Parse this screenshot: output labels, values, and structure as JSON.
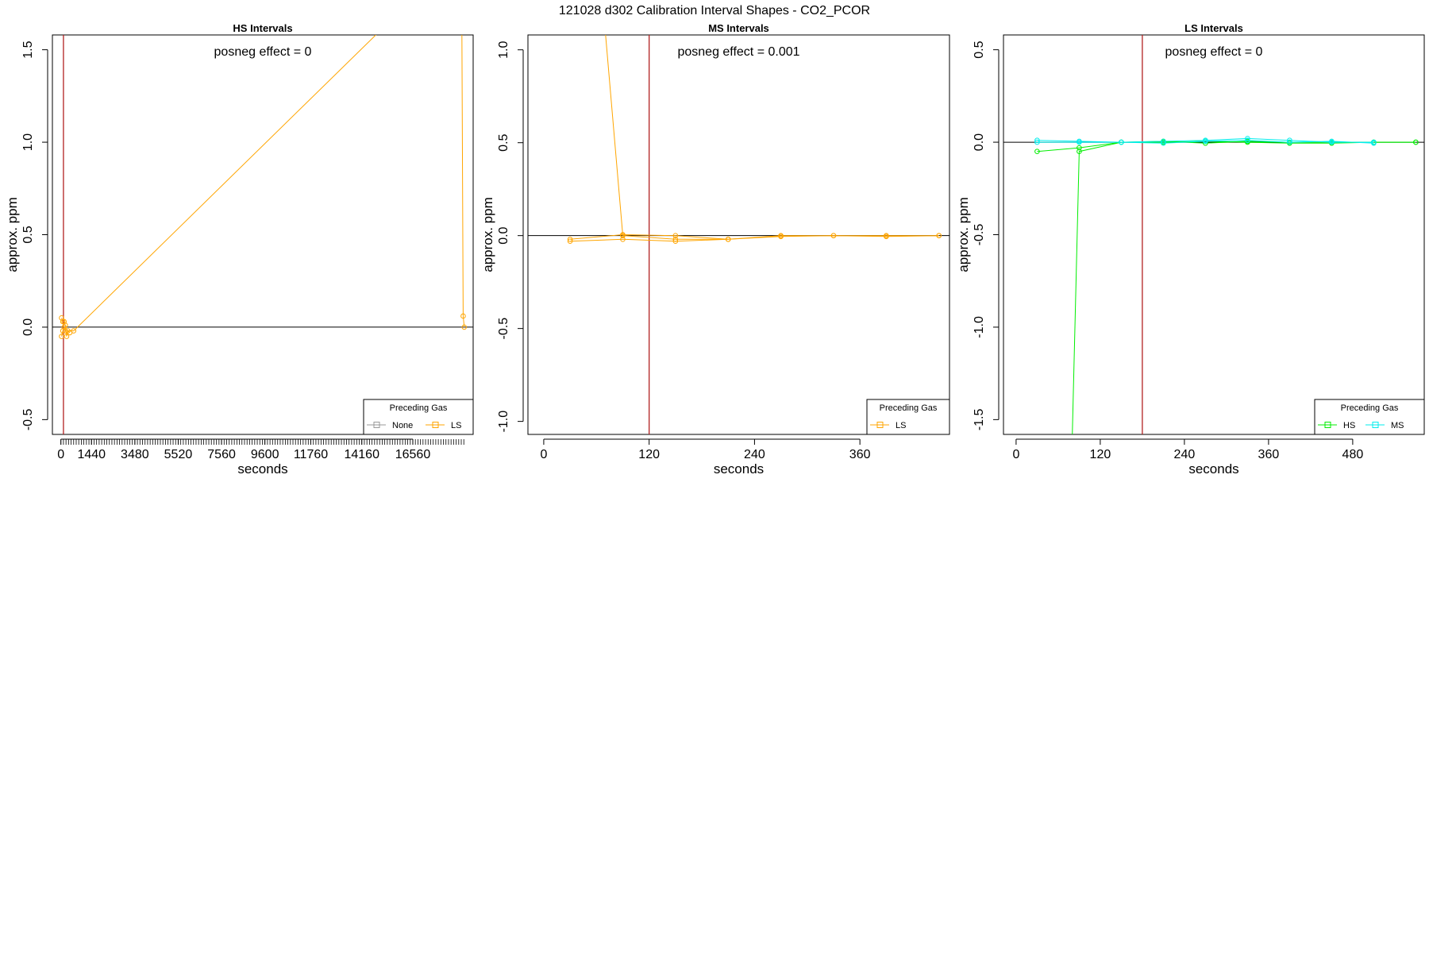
{
  "figure": {
    "title": "121028  d302   Calibration Interval Shapes - CO2_PCOR"
  },
  "colors": {
    "none": "#999999",
    "LS": "#FFA500",
    "HS": "#00EE00",
    "MS": "#00EEEE",
    "vline": "#B22222",
    "zero": "#000000"
  },
  "chart_data": [
    {
      "type": "line",
      "title": "HS Intervals",
      "annotation": "posneg effect = 0",
      "xlabel": "seconds",
      "ylabel": "approx. ppm",
      "xlim": [
        -400,
        19400
      ],
      "ylim": [
        -0.58,
        1.58
      ],
      "xticks": [
        0,
        1440,
        3480,
        5520,
        7560,
        9600,
        11760,
        14160,
        16560
      ],
      "xtick_labels": [
        "0",
        "1440",
        "3480",
        "5520",
        "7560",
        "9600",
        "11760",
        "14160",
        "16560"
      ],
      "minor_xticks_every": 120,
      "minor_xticks_range": [
        0,
        18960
      ],
      "yticks": [
        -0.5,
        0,
        0.5,
        1,
        1.5
      ],
      "ytick_labels": [
        "-0.5",
        "0.0",
        "0.5",
        "1.0",
        "1.5"
      ],
      "vline": 120,
      "legend": {
        "title": "Preceding Gas",
        "position": "bottom-right",
        "entries": [
          "None",
          "LS"
        ]
      },
      "series": [
        {
          "name": "None",
          "color": "none",
          "x": [],
          "y": []
        },
        {
          "name": "LS",
          "color": "LS",
          "x": [
            30,
            90,
            150,
            210,
            270,
            330,
            420
          ],
          "y": [
            0.05,
            0.03,
            0.03,
            0.01,
            -0.05,
            -0.02,
            -0.03
          ]
        },
        {
          "name": "LS",
          "color": "LS",
          "x": [
            30,
            90,
            150,
            210,
            600,
            15000
          ],
          "y": [
            -0.05,
            -0.02,
            0.0,
            -0.02,
            -0.02,
            1.6
          ]
        },
        {
          "name": "LS",
          "color": "LS",
          "x": [
            18870,
            18930,
            18980
          ],
          "y": [
            1.6,
            0.06,
            0.0
          ]
        }
      ]
    },
    {
      "type": "line",
      "title": "MS Intervals",
      "annotation": "posneg effect = 0.001",
      "xlabel": "seconds",
      "ylabel": "approx. ppm",
      "xlim": [
        -18,
        462
      ],
      "ylim": [
        -1.07,
        1.08
      ],
      "xticks": [
        0,
        120,
        240,
        360
      ],
      "xtick_labels": [
        "0",
        "120",
        "240",
        "360"
      ],
      "yticks": [
        -1,
        -0.5,
        0,
        0.5,
        1
      ],
      "ytick_labels": [
        "-1.0",
        "-0.5",
        "0.0",
        "0.5",
        "1.0"
      ],
      "vline": 120,
      "legend": {
        "title": "Preceding Gas",
        "position": "bottom-right",
        "entries": [
          "LS"
        ]
      },
      "series": [
        {
          "name": "LS",
          "color": "LS",
          "x": [
            70,
            90,
            150,
            210,
            270,
            330,
            390,
            450
          ],
          "y": [
            1.1,
            0.0,
            -0.02,
            -0.02,
            0.0,
            0.0,
            0.0,
            0.0
          ]
        },
        {
          "name": "LS",
          "color": "LS",
          "x": [
            30,
            90,
            150,
            210,
            270,
            330,
            390,
            450
          ],
          "y": [
            -0.02,
            0.005,
            0.0,
            -0.02,
            -0.005,
            0.0,
            -0.005,
            0.0
          ]
        },
        {
          "name": "LS",
          "color": "LS",
          "x": [
            30,
            90,
            150,
            210
          ],
          "y": [
            -0.03,
            -0.02,
            -0.03,
            -0.02
          ]
        }
      ]
    },
    {
      "type": "line",
      "title": "LS Intervals",
      "annotation": "posneg effect = 0",
      "xlabel": "seconds",
      "ylabel": "approx. ppm",
      "xlim": [
        -18,
        582
      ],
      "ylim": [
        -1.58,
        0.58
      ],
      "xticks": [
        0,
        120,
        240,
        360,
        480
      ],
      "xtick_labels": [
        "0",
        "120",
        "240",
        "360",
        "480"
      ],
      "yticks": [
        -1.5,
        -1,
        -0.5,
        0,
        0.5
      ],
      "ytick_labels": [
        "-1.5",
        "-1.0",
        "-0.5",
        "0.0",
        "0.5"
      ],
      "vline": 180,
      "legend": {
        "title": "Preceding Gas",
        "position": "bottom-right",
        "entries": [
          "HS",
          "MS"
        ]
      },
      "series": [
        {
          "name": "HS",
          "color": "HS",
          "x": [
            30,
            90,
            150,
            210,
            270,
            330,
            390,
            450,
            510,
            570
          ],
          "y": [
            -0.05,
            -0.03,
            0.0,
            0.005,
            -0.005,
            0.005,
            0.0,
            0.0,
            0.0,
            0.0
          ]
        },
        {
          "name": "HS",
          "color": "HS",
          "x": [
            80,
            90,
            150,
            210,
            270,
            330,
            390,
            450,
            510,
            570
          ],
          "y": [
            -1.6,
            -0.05,
            0.0,
            0.0,
            0.005,
            0.0,
            -0.005,
            -0.005,
            0.0,
            0.0
          ]
        },
        {
          "name": "MS",
          "color": "MS",
          "x": [
            30,
            90,
            150,
            210,
            270,
            330,
            390,
            450,
            510
          ],
          "y": [
            0.01,
            0.005,
            0.0,
            0.005,
            0.01,
            0.02,
            0.01,
            0.0,
            0.0
          ]
        },
        {
          "name": "MS",
          "color": "MS",
          "x": [
            30,
            90,
            150,
            210,
            270,
            330,
            390,
            450,
            510
          ],
          "y": [
            0.0,
            0.0,
            0.0,
            -0.005,
            0.005,
            0.01,
            0.0,
            0.005,
            -0.005
          ]
        }
      ]
    }
  ]
}
